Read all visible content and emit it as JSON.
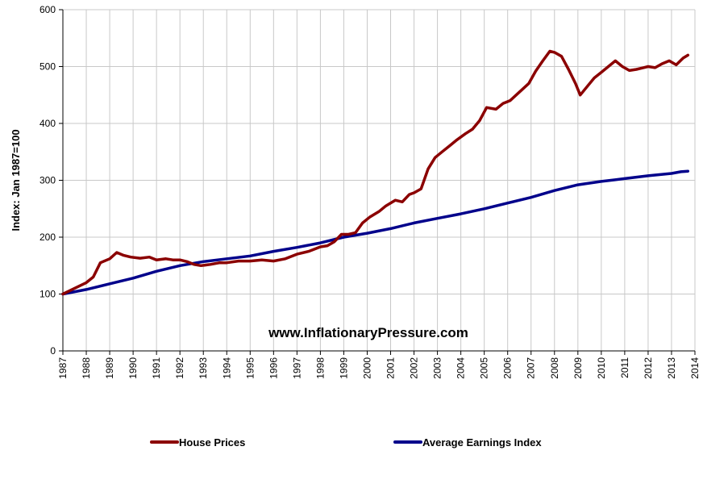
{
  "chart_data": {
    "type": "line",
    "title": "",
    "ylabel": "Index: Jan 1987=100",
    "xlabel": "",
    "annotation": "www.InflationaryPressure.com",
    "ylim": [
      0,
      600
    ],
    "xlim": [
      1987,
      2014
    ],
    "y_ticks": [
      "0",
      "100",
      "200",
      "300",
      "400",
      "500",
      "600"
    ],
    "x_ticks": [
      "1987",
      "1988",
      "1989",
      "1990",
      "1991",
      "1992",
      "1993",
      "1994",
      "1995",
      "1996",
      "1997",
      "1998",
      "1999",
      "2000",
      "2001",
      "2002",
      "2003",
      "2004",
      "2005",
      "2006",
      "2007",
      "2008",
      "2009",
      "2010",
      "2011",
      "2012",
      "2013",
      "2014"
    ],
    "grid": true,
    "legend_position": "bottom",
    "series": [
      {
        "name": "House Prices",
        "color": "#8B0000",
        "x": [
          1987.0,
          1987.5,
          1988.0,
          1988.3,
          1988.6,
          1989.0,
          1989.3,
          1989.6,
          1989.9,
          1990.3,
          1990.7,
          1991.0,
          1991.4,
          1991.7,
          1992.0,
          1992.3,
          1992.6,
          1992.9,
          1993.3,
          1993.7,
          1994.0,
          1994.5,
          1995.0,
          1995.5,
          1996.0,
          1996.5,
          1997.0,
          1997.5,
          1998.0,
          1998.3,
          1998.6,
          1998.9,
          1999.2,
          1999.5,
          1999.8,
          2000.1,
          2000.5,
          2000.8,
          2001.2,
          2001.5,
          2001.8,
          2002.0,
          2002.3,
          2002.6,
          2002.9,
          2003.2,
          2003.5,
          2003.8,
          2004.2,
          2004.5,
          2004.8,
          2005.1,
          2005.5,
          2005.8,
          2006.1,
          2006.5,
          2006.9,
          2007.2,
          2007.5,
          2007.8,
          2008.0,
          2008.3,
          2008.6,
          2008.9,
          2009.1,
          2009.4,
          2009.7,
          2010.0,
          2010.3,
          2010.6,
          2010.9,
          2011.2,
          2011.5,
          2011.8,
          2012.0,
          2012.3,
          2012.6,
          2012.9,
          2013.2,
          2013.5,
          2013.7
        ],
        "values": [
          100,
          110,
          120,
          130,
          155,
          162,
          173,
          168,
          165,
          163,
          165,
          160,
          162,
          160,
          160,
          157,
          152,
          150,
          152,
          155,
          155,
          158,
          158,
          160,
          158,
          162,
          170,
          175,
          183,
          185,
          192,
          205,
          205,
          208,
          225,
          235,
          245,
          255,
          265,
          262,
          275,
          278,
          285,
          320,
          340,
          350,
          360,
          370,
          382,
          390,
          405,
          428,
          425,
          435,
          440,
          455,
          470,
          492,
          510,
          527,
          525,
          518,
          495,
          470,
          450,
          465,
          480,
          490,
          500,
          510,
          500,
          493,
          495,
          498,
          500,
          498,
          505,
          510,
          503,
          515,
          520
        ]
      },
      {
        "name": "Average Earnings Index",
        "color": "#00008B",
        "x": [
          1987.0,
          1988.0,
          1989.0,
          1990.0,
          1991.0,
          1992.0,
          1993.0,
          1994.0,
          1995.0,
          1996.0,
          1997.0,
          1998.0,
          1999.0,
          2000.0,
          2001.0,
          2002.0,
          2003.0,
          2004.0,
          2005.0,
          2006.0,
          2007.0,
          2008.0,
          2009.0,
          2010.0,
          2011.0,
          2012.0,
          2013.0,
          2013.4,
          2013.7
        ],
        "values": [
          100,
          108,
          118,
          128,
          140,
          150,
          157,
          162,
          167,
          175,
          182,
          190,
          200,
          207,
          215,
          225,
          233,
          241,
          250,
          260,
          270,
          282,
          292,
          298,
          303,
          308,
          312,
          315,
          316
        ]
      }
    ]
  }
}
